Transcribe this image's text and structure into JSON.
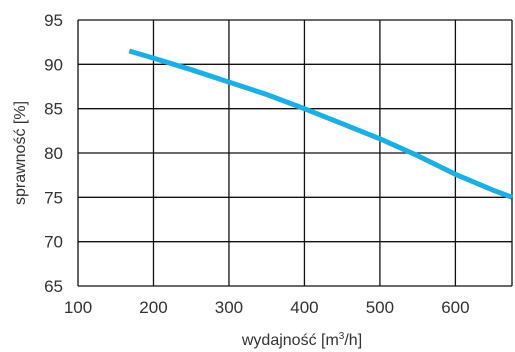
{
  "chart_data": {
    "type": "line",
    "xlabel": "wydajność [m3/h]",
    "xlabel_parts": {
      "before": "wydajność [m",
      "sup": "3",
      "after": "/h]"
    },
    "ylabel": "sprawność [%]",
    "xlim": [
      100,
      675
    ],
    "ylim": [
      65,
      95
    ],
    "x_ticks": [
      "100",
      "200",
      "300",
      "400",
      "500",
      "600"
    ],
    "y_ticks": [
      "95",
      "90",
      "85",
      "80",
      "75",
      "70",
      "65"
    ],
    "grid": true,
    "series": [
      {
        "color": "#1ab0e6",
        "points": [
          [
            168,
            91.5
          ],
          [
            200,
            90.7
          ],
          [
            250,
            89.4
          ],
          [
            300,
            88.0
          ],
          [
            350,
            86.6
          ],
          [
            400,
            85.0
          ],
          [
            450,
            83.3
          ],
          [
            500,
            81.6
          ],
          [
            550,
            79.7
          ],
          [
            600,
            77.6
          ],
          [
            650,
            75.8
          ],
          [
            675,
            75.0
          ]
        ]
      }
    ]
  }
}
